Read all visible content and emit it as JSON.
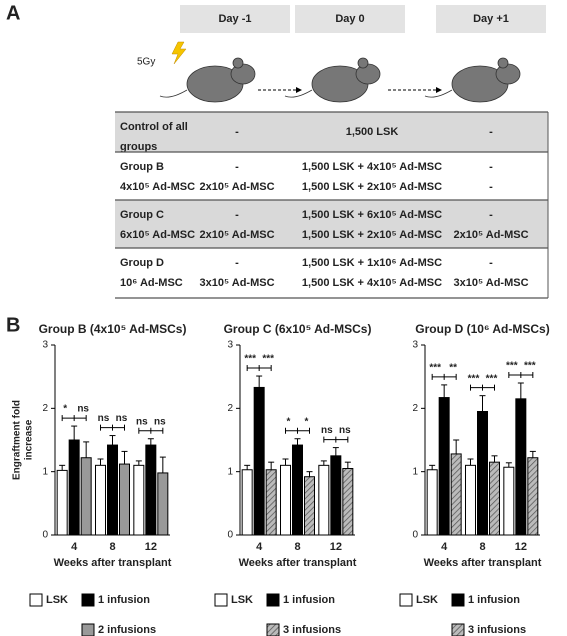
{
  "panel_a": {
    "label": "A",
    "days": [
      "Day -1",
      "Day 0",
      "Day +1"
    ],
    "dose": "5Gy",
    "table": {
      "rows": [
        [
          [
            "Control of all",
            "groups"
          ],
          [
            "-"
          ],
          [
            "1,500 LSK"
          ],
          [
            "-"
          ]
        ],
        [
          [
            "Group B",
            "4x10⁵ Ad-MSC"
          ],
          [
            "-",
            "2x10⁵ Ad-MSC"
          ],
          [
            "1,500 LSK + 4x10⁵ Ad-MSC",
            "1,500 LSK + 2x10⁵ Ad-MSC"
          ],
          [
            "-",
            "-"
          ]
        ],
        [
          [
            "Group C",
            "6x10⁵ Ad-MSC"
          ],
          [
            "-",
            "2x10⁵ Ad-MSC"
          ],
          [
            "1,500 LSK + 6x10⁵ Ad-MSC",
            "1,500 LSK + 2x10⁵ Ad-MSC"
          ],
          [
            "-",
            "2x10⁵ Ad-MSC"
          ]
        ],
        [
          [
            "Group D",
            "10⁶ Ad-MSC"
          ],
          [
            "-",
            "3x10⁵ Ad-MSC"
          ],
          [
            "1,500 LSK + 1x10⁶ Ad-MSC",
            "1,500 LSK + 4x10⁵ Ad-MSC"
          ],
          [
            "-",
            "3x10⁵ Ad-MSC"
          ]
        ]
      ]
    }
  },
  "panel_b_label": "B",
  "chart_data": [
    {
      "type": "bar",
      "title": "Group B (4x10⁵ Ad-MSCs)",
      "y_label": [
        "Engraftment fold",
        "increase"
      ],
      "x_label": "Weeks after transplant",
      "categories": [
        "4",
        "8",
        "12"
      ],
      "ylim": [
        0,
        3
      ],
      "yticks": [
        0,
        1,
        2,
        3
      ],
      "series": [
        {
          "name": "LSK",
          "color": "#ffffff",
          "values": [
            1.02,
            1.1,
            1.1
          ],
          "errors": [
            0.08,
            0.1,
            0.07
          ]
        },
        {
          "name": "1 infusion",
          "color": "#000000",
          "values": [
            1.5,
            1.42,
            1.42
          ],
          "errors": [
            0.22,
            0.15,
            0.1
          ]
        },
        {
          "name": "2 infusions",
          "color": "#999999",
          "values": [
            1.22,
            1.12,
            0.98
          ],
          "errors": [
            0.25,
            0.2,
            0.25
          ]
        }
      ],
      "significance": [
        [
          "*",
          "ns"
        ],
        [
          "ns",
          "ns"
        ],
        [
          "ns",
          "ns"
        ]
      ]
    },
    {
      "type": "bar",
      "title": "Group C (6x10⁵ Ad-MSCs)",
      "x_label": "Weeks after transplant",
      "categories": [
        "4",
        "8",
        "12"
      ],
      "ylim": [
        0,
        3
      ],
      "yticks": [
        0,
        1,
        2,
        3
      ],
      "series": [
        {
          "name": "LSK",
          "color": "#ffffff",
          "values": [
            1.03,
            1.1,
            1.1
          ],
          "errors": [
            0.07,
            0.1,
            0.07
          ]
        },
        {
          "name": "1 infusion",
          "color": "#000000",
          "values": [
            2.33,
            1.42,
            1.25
          ],
          "errors": [
            0.18,
            0.1,
            0.13
          ]
        },
        {
          "name": "3 infusions",
          "color": "#aaaaaa",
          "hatch": true,
          "values": [
            1.03,
            0.92,
            1.05
          ],
          "errors": [
            0.12,
            0.08,
            0.1
          ]
        }
      ],
      "significance": [
        [
          "***",
          "***"
        ],
        [
          "*",
          "*"
        ],
        [
          "ns",
          "ns"
        ]
      ]
    },
    {
      "type": "bar",
      "title": "Group D (10⁶ Ad-MSCs)",
      "x_label": "Weeks after transplant",
      "categories": [
        "4",
        "8",
        "12"
      ],
      "ylim": [
        0,
        3
      ],
      "yticks": [
        0,
        1,
        2,
        3
      ],
      "series": [
        {
          "name": "LSK",
          "color": "#ffffff",
          "values": [
            1.03,
            1.1,
            1.07
          ],
          "errors": [
            0.07,
            0.1,
            0.07
          ]
        },
        {
          "name": "1 infusion",
          "color": "#000000",
          "values": [
            2.17,
            1.95,
            2.15
          ],
          "errors": [
            0.2,
            0.25,
            0.25
          ]
        },
        {
          "name": "3 infusions",
          "color": "#aaaaaa",
          "hatch": true,
          "values": [
            1.28,
            1.15,
            1.22
          ],
          "errors": [
            0.22,
            0.1,
            0.1
          ]
        }
      ],
      "significance": [
        [
          "***",
          "**"
        ],
        [
          "***",
          "***"
        ],
        [
          "***",
          "***"
        ]
      ]
    }
  ]
}
